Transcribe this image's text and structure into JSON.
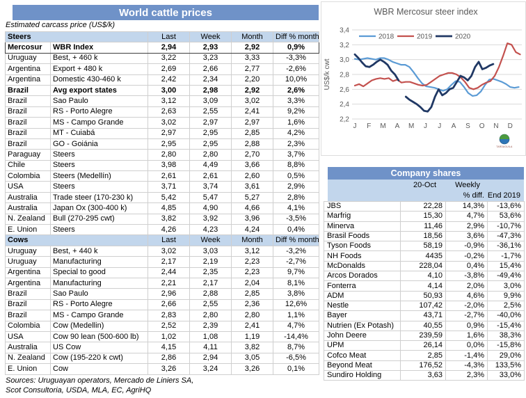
{
  "left_table": {
    "title": "World cattle prices",
    "subtitle": "Estimated carcass price (US$/k)",
    "columns": [
      "Last",
      "Week",
      "Month",
      "Diff % month"
    ],
    "sections": [
      {
        "name": "Steers",
        "rows": [
          {
            "country": "Mercosur",
            "desc": "WBR Index",
            "last": "2,94",
            "week": "2,93",
            "month": "2,92",
            "diff": "0,9%",
            "bold": true,
            "outlined": true
          },
          {
            "country": "Uruguay",
            "desc": "Best, + 460 k",
            "last": "3,22",
            "week": "3,23",
            "month": "3,33",
            "diff": "-3,3%"
          },
          {
            "country": "Argentina",
            "desc": "Export + 480 k",
            "last": "2,69",
            "week": "2,66",
            "month": "2,77",
            "diff": "-2,6%"
          },
          {
            "country": "Argentina",
            "desc": "Domestic 430-460 k",
            "last": "2,42",
            "week": "2,34",
            "month": "2,20",
            "diff": "10,0%"
          },
          {
            "country": "Brazil",
            "desc": "Avg export states",
            "last": "3,00",
            "week": "2,98",
            "month": "2,92",
            "diff": "2,6%",
            "bold": true
          },
          {
            "country": "Brazil",
            "desc": "Sao Paulo",
            "last": "3,12",
            "week": "3,09",
            "month": "3,02",
            "diff": "3,3%"
          },
          {
            "country": "Brazil",
            "desc": "RS - Porto Alegre",
            "last": "2,63",
            "week": "2,55",
            "month": "2,41",
            "diff": "9,2%"
          },
          {
            "country": "Brazil",
            "desc": "MS - Campo Grande",
            "last": "3,02",
            "week": "2,97",
            "month": "2,97",
            "diff": "1,6%"
          },
          {
            "country": "Brazil",
            "desc": "MT - Cuiabá",
            "last": "2,97",
            "week": "2,95",
            "month": "2,85",
            "diff": "4,2%"
          },
          {
            "country": "Brazil",
            "desc": "GO - Goiánia",
            "last": "2,95",
            "week": "2,95",
            "month": "2,88",
            "diff": "2,3%"
          },
          {
            "country": "Paraguay",
            "desc": "Steers",
            "last": "2,80",
            "week": "2,80",
            "month": "2,70",
            "diff": "3,7%"
          },
          {
            "country": "Chile",
            "desc": "Steers",
            "last": "3,98",
            "week": "4,49",
            "month": "3,66",
            "diff": "8,8%"
          },
          {
            "country": "Colombia",
            "desc": "Steers (Medellín)",
            "last": "2,61",
            "week": "2,61",
            "month": "2,60",
            "diff": "0,5%"
          },
          {
            "country": "USA",
            "desc": "Steers",
            "last": "3,71",
            "week": "3,74",
            "month": "3,61",
            "diff": "2,9%"
          },
          {
            "country": "Australia",
            "desc": "Trade steer (170-230 k)",
            "last": "5,42",
            "week": "5,47",
            "month": "5,27",
            "diff": "2,8%"
          },
          {
            "country": "Australia",
            "desc": "Japan Ox (300-400 k)",
            "last": "4,85",
            "week": "4,90",
            "month": "4,66",
            "diff": "4,1%"
          },
          {
            "country": "N. Zealand",
            "desc": "Bull (270-295 cwt)",
            "last": "3,82",
            "week": "3,92",
            "month": "3,96",
            "diff": "-3,5%"
          },
          {
            "country": "E. Union",
            "desc": "Steers",
            "last": "4,26",
            "week": "4,23",
            "month": "4,24",
            "diff": "0,4%"
          }
        ]
      },
      {
        "name": "Cows",
        "rows": [
          {
            "country": "Uruguay",
            "desc": "Best, + 440 k",
            "last": "3,02",
            "week": "3,03",
            "month": "3,12",
            "diff": "-3,2%"
          },
          {
            "country": "Uruguay",
            "desc": "Manufacturing",
            "last": "2,17",
            "week": "2,19",
            "month": "2,23",
            "diff": "-2,7%"
          },
          {
            "country": "Argentina",
            "desc": "Special to good",
            "last": "2,44",
            "week": "2,35",
            "month": "2,23",
            "diff": "9,7%"
          },
          {
            "country": "Argentina",
            "desc": "Manufacturing",
            "last": "2,21",
            "week": "2,17",
            "month": "2,04",
            "diff": "8,1%"
          },
          {
            "country": "Brazil",
            "desc": "Sao Paulo",
            "last": "2,96",
            "week": "2,88",
            "month": "2,85",
            "diff": "3,8%"
          },
          {
            "country": "Brazil",
            "desc": "RS - Porto Alegre",
            "last": "2,66",
            "week": "2,55",
            "month": "2,36",
            "diff": "12,6%"
          },
          {
            "country": "Brazil",
            "desc": "MS - Campo Grande",
            "last": "2,83",
            "week": "2,80",
            "month": "2,80",
            "diff": "1,1%"
          },
          {
            "country": "Colombia",
            "desc": "Cow (Medellin)",
            "last": "2,52",
            "week": "2,39",
            "month": "2,41",
            "diff": "4,7%"
          },
          {
            "country": "USA",
            "desc": "Cow 90 lean (500-600 lb)",
            "last": "1,02",
            "week": "1,08",
            "month": "1,19",
            "diff": "-14,4%"
          },
          {
            "country": "Australia",
            "desc": "US Cow",
            "last": "4,15",
            "week": "4,11",
            "month": "3,82",
            "diff": "8,7%"
          },
          {
            "country": "N. Zealand",
            "desc": "Cow (195-220 k cwt)",
            "last": "2,86",
            "week": "2,94",
            "month": "3,05",
            "diff": "-6,5%"
          },
          {
            "country": "E. Union",
            "desc": "Cow",
            "last": "3,26",
            "week": "3,24",
            "month": "3,26",
            "diff": "0,1%"
          }
        ]
      }
    ],
    "sources_line1": "Sources: Uruguayan operators, Mercado de Liniers SA,",
    "sources_line2": "Scot Consultoria, USDA, MLA, EC, AgriHQ"
  },
  "chart_data": {
    "type": "line",
    "title": "WBR Mercosur steer index",
    "ylabel": "US$/k cwt",
    "ylim": [
      2.2,
      3.4
    ],
    "ytick_step": 0.2,
    "x_months": [
      "J",
      "F",
      "M",
      "A",
      "M",
      "J",
      "J",
      "A",
      "S",
      "O",
      "N",
      "D"
    ],
    "grid": true,
    "legend_position": "top",
    "logo_label": "TARDAGUILA",
    "series": [
      {
        "name": "2018",
        "color": "#5B9BD5",
        "x_start": 0,
        "x_end": 11.6,
        "values": [
          3.01,
          3.0,
          3.01,
          3.02,
          3.01,
          3.0,
          3.02,
          3.02,
          3.0,
          2.97,
          2.95,
          2.93,
          2.93,
          2.9,
          2.83,
          2.75,
          2.68,
          2.64,
          2.63,
          2.62,
          2.6,
          2.58,
          2.6,
          2.66,
          2.71,
          2.7,
          2.63,
          2.55,
          2.51,
          2.52,
          2.57,
          2.66,
          2.73,
          2.74,
          2.72,
          2.7,
          2.67,
          2.63,
          2.62,
          2.63
        ]
      },
      {
        "name": "2019",
        "color": "#C3514E",
        "x_start": 0,
        "x_end": 11.7,
        "values": [
          2.65,
          2.67,
          2.64,
          2.68,
          2.72,
          2.74,
          2.75,
          2.74,
          2.75,
          2.71,
          2.73,
          2.69,
          2.7,
          2.7,
          2.68,
          2.66,
          2.65,
          2.66,
          2.7,
          2.74,
          2.78,
          2.8,
          2.82,
          2.82,
          2.8,
          2.76,
          2.7,
          2.62,
          2.6,
          2.62,
          2.66,
          2.69,
          2.71,
          2.78,
          2.9,
          3.05,
          3.22,
          3.2,
          3.1,
          3.07
        ]
      },
      {
        "name": "2020",
        "color": "#203864",
        "x_start": 0,
        "x_end": 9.8,
        "values": [
          3.07,
          3.02,
          2.96,
          2.91,
          2.9,
          2.93,
          2.97,
          3.0,
          2.97,
          2.93,
          2.85,
          2.8,
          2.72,
          null,
          2.5,
          2.46,
          2.43,
          2.4,
          2.36,
          2.31,
          2.3,
          2.36,
          2.5,
          2.6,
          2.52,
          2.55,
          2.6,
          2.62,
          2.7,
          2.78,
          2.76,
          2.72,
          2.78,
          2.9,
          2.97,
          2.87,
          2.89,
          2.92,
          2.94
        ]
      }
    ]
  },
  "company_shares": {
    "title": "Company shares",
    "header": {
      "col2_line1": "20-Oct",
      "col3_line1": "Weekly",
      "col3_line2": "% diff.",
      "col4_line2": "End 2019"
    },
    "rows": [
      [
        "JBS",
        "22,28",
        "14,3%",
        "-13,6%"
      ],
      [
        "Marfrig",
        "15,30",
        "4,7%",
        "53,6%"
      ],
      [
        "Minerva",
        "11,46",
        "2,9%",
        "-10,7%"
      ],
      [
        "Brasil Foods",
        "18,56",
        "3,6%",
        "-47,3%"
      ],
      [
        "Tyson Foods",
        "58,19",
        "-0,9%",
        "-36,1%"
      ],
      [
        "NH Foods",
        "4435",
        "-0,2%",
        "-1,7%"
      ],
      [
        "McDonalds",
        "228,04",
        "0,4%",
        "15,4%"
      ],
      [
        "Arcos Dorados",
        "4,10",
        "-3,8%",
        "-49,4%"
      ],
      [
        "Fonterra",
        "4,14",
        "2,0%",
        "3,0%"
      ],
      [
        "ADM",
        "50,93",
        "4,6%",
        "9,9%"
      ],
      [
        "Nestle",
        "107,42",
        "-2,0%",
        "2,5%"
      ],
      [
        "Bayer",
        "43,71",
        "-2,7%",
        "-40,0%"
      ],
      [
        "Nutrien (Ex Potash)",
        "40,55",
        "0,9%",
        "-15,4%"
      ],
      [
        "John Deere",
        "239,59",
        "1,6%",
        "38,3%"
      ],
      [
        "UPM",
        "26,14",
        "0,0%",
        "-15,8%"
      ],
      [
        "Cofco Meat",
        "2,85",
        "-1,4%",
        "29,0%"
      ],
      [
        "Beyond Meat",
        "176,52",
        "-4,3%",
        "133,5%"
      ],
      [
        "Sundiro Holding",
        "3,63",
        "2,3%",
        "33,0%"
      ]
    ]
  },
  "colors": {
    "header_blue": "#6F92C8",
    "band_blue": "#C2D6EC",
    "grid_border": "#CFCFCF",
    "chart_text_gray": "#595959"
  }
}
